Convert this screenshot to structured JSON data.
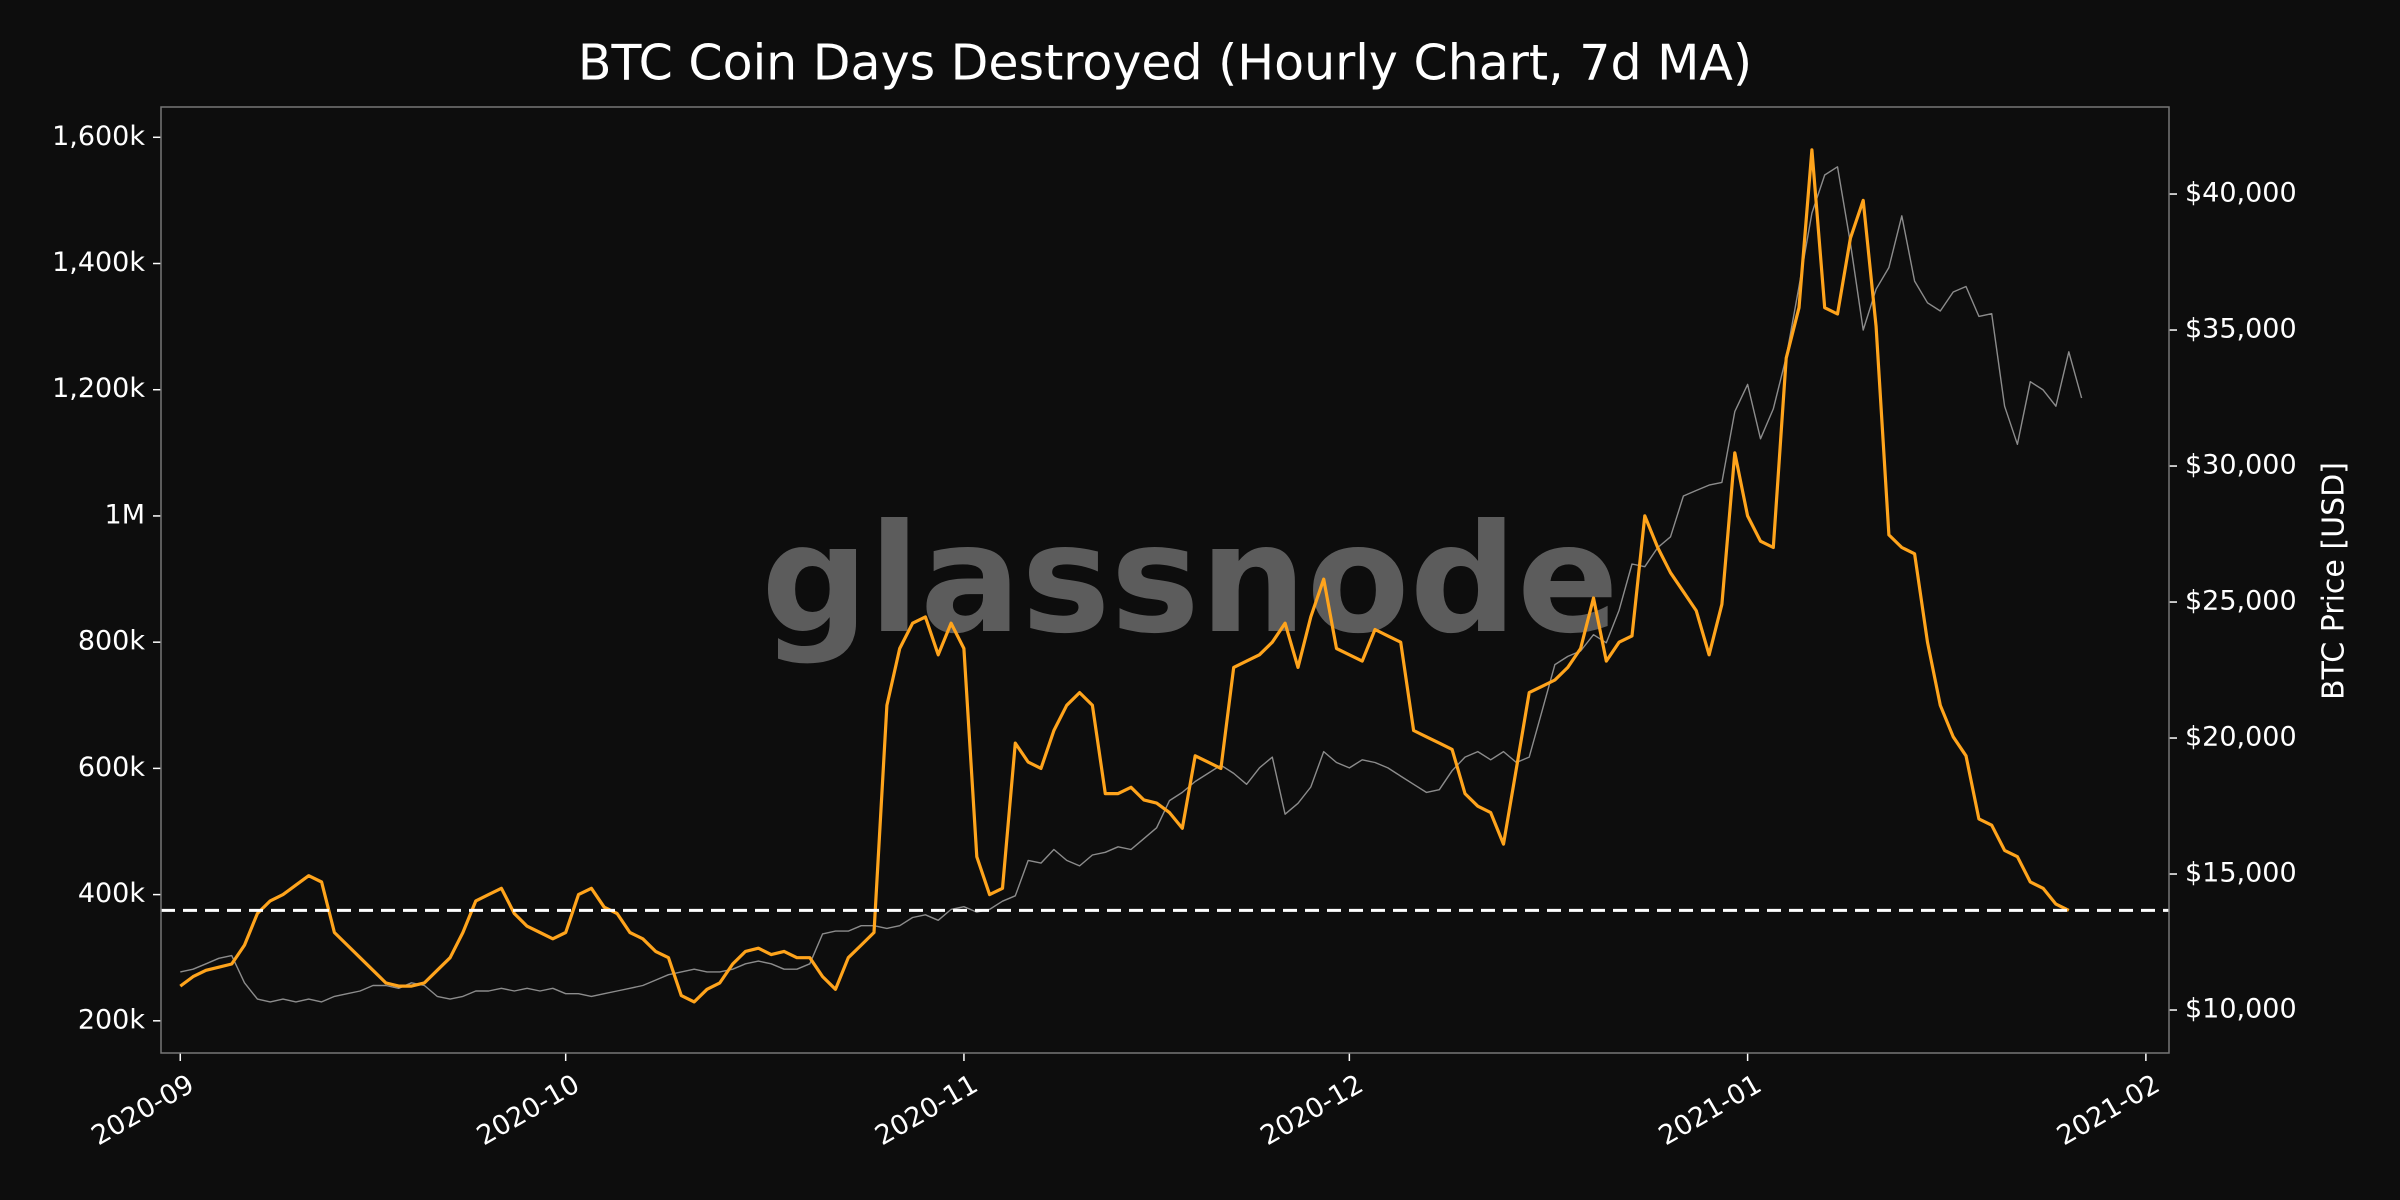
{
  "chart_data": {
    "type": "line",
    "title": "BTC Coin Days Destroyed (Hourly Chart, 7d MA)",
    "watermark": "glassnode",
    "y2label": "BTC Price [USD]",
    "categories": [
      "2020-09",
      null,
      null,
      null,
      null,
      null,
      null,
      null,
      null,
      null,
      null,
      null,
      null,
      null,
      null,
      null,
      null,
      null,
      null,
      null,
      null,
      null,
      null,
      null,
      null,
      null,
      null,
      null,
      null,
      null,
      "2020-10",
      null,
      null,
      null,
      null,
      null,
      null,
      null,
      null,
      null,
      null,
      null,
      null,
      null,
      null,
      null,
      null,
      null,
      null,
      null,
      null,
      null,
      null,
      null,
      null,
      null,
      null,
      null,
      null,
      null,
      null,
      "2020-11",
      null,
      null,
      null,
      null,
      null,
      null,
      null,
      null,
      null,
      null,
      null,
      null,
      null,
      null,
      null,
      null,
      null,
      null,
      null,
      null,
      null,
      null,
      null,
      null,
      null,
      null,
      null,
      null,
      null,
      "2020-12",
      null,
      null,
      null,
      null,
      null,
      null,
      null,
      null,
      null,
      null,
      null,
      null,
      null,
      null,
      null,
      null,
      null,
      null,
      null,
      null,
      null,
      null,
      null,
      null,
      null,
      null,
      null,
      null,
      null,
      null,
      "2021-01",
      null,
      null,
      null,
      null,
      null,
      null,
      null,
      null,
      null,
      null,
      null,
      null,
      null,
      null,
      null,
      null,
      null,
      null,
      null,
      null,
      null,
      null,
      null,
      null,
      null,
      null,
      null,
      null,
      null,
      null,
      "2021-02"
    ],
    "series": [
      {
        "color": "#8c8c8c",
        "axis": "y2",
        "values": [
          11400,
          11500,
          11700,
          11900,
          12000,
          11000,
          10400,
          10300,
          10400,
          10300,
          10400,
          10300,
          10500,
          10600,
          10700,
          10900,
          10900,
          10800,
          11000,
          10900,
          10500,
          10400,
          10500,
          10700,
          10700,
          10800,
          10700,
          10800,
          10700,
          10800,
          10600,
          10600,
          10500,
          10600,
          10700,
          10800,
          10900,
          11100,
          11300,
          11400,
          11500,
          11400,
          11400,
          11500,
          11700,
          11800,
          11700,
          11500,
          11500,
          11700,
          12800,
          12900,
          12900,
          13100,
          13100,
          13000,
          13100,
          13400,
          13500,
          13300,
          13700,
          13800,
          13600,
          13700,
          14000,
          14200,
          15500,
          15400,
          15900,
          15500,
          15300,
          15700,
          15800,
          16000,
          15900,
          16300,
          16700,
          17700,
          18000,
          18400,
          18700,
          19000,
          18700,
          18300,
          18900,
          19300,
          17200,
          17600,
          18200,
          19500,
          19100,
          18900,
          19200,
          19100,
          18900,
          18600,
          18300,
          18000,
          18100,
          18800,
          19300,
          19500,
          19200,
          19500,
          19100,
          19300,
          21000,
          22700,
          23000,
          23200,
          23800,
          23500,
          24700,
          26400,
          26300,
          27000,
          27400,
          28900,
          29100,
          29300,
          29400,
          32000,
          33000,
          31000,
          32100,
          34000,
          36600,
          39300,
          40700,
          41000,
          38200,
          35000,
          36500,
          37300,
          39200,
          36800,
          36000,
          35700,
          36400,
          36600,
          35500,
          35600,
          32200,
          30800,
          33100,
          32800,
          32200,
          34200,
          32500,
          null,
          null,
          null,
          null,
          null
        ]
      },
      {
        "color": "#ffa41c",
        "values": [
          255000,
          270000,
          280000,
          285000,
          290000,
          320000,
          370000,
          390000,
          400000,
          415000,
          430000,
          420000,
          340000,
          320000,
          300000,
          280000,
          260000,
          255000,
          255000,
          260000,
          280000,
          300000,
          340000,
          390000,
          400000,
          410000,
          370000,
          350000,
          340000,
          330000,
          340000,
          400000,
          410000,
          380000,
          370000,
          340000,
          330000,
          310000,
          300000,
          240000,
          230000,
          250000,
          260000,
          290000,
          310000,
          315000,
          305000,
          310000,
          300000,
          300000,
          270000,
          250000,
          300000,
          320000,
          340000,
          700000,
          790000,
          830000,
          840000,
          780000,
          830000,
          790000,
          460000,
          400000,
          410000,
          640000,
          610000,
          600000,
          660000,
          700000,
          720000,
          700000,
          560000,
          560000,
          570000,
          550000,
          545000,
          530000,
          505000,
          620000,
          610000,
          600000,
          760000,
          770000,
          780000,
          800000,
          830000,
          760000,
          840000,
          900000,
          790000,
          780000,
          770000,
          820000,
          810000,
          800000,
          660000,
          650000,
          640000,
          630000,
          560000,
          540000,
          530000,
          480000,
          600000,
          720000,
          730000,
          740000,
          760000,
          790000,
          870000,
          770000,
          800000,
          810000,
          1000000,
          950000,
          910000,
          880000,
          850000,
          780000,
          860000,
          1100000,
          1000000,
          960000,
          950000,
          1250000,
          1330000,
          1580000,
          1330000,
          1320000,
          1440000,
          1500000,
          1300000,
          970000,
          950000,
          940000,
          800000,
          700000,
          650000,
          620000,
          520000,
          510000,
          470000,
          460000,
          420000,
          410000,
          385000,
          375000,
          null,
          null,
          null,
          null,
          null,
          null
        ]
      }
    ],
    "hline": {
      "value": 375000,
      "color": "#ffffff",
      "style": "dashed"
    },
    "ylim": [
      149000,
      1648000
    ],
    "yticks": [
      {
        "value": 200000,
        "label": "200k"
      },
      {
        "value": 400000,
        "label": "400k"
      },
      {
        "value": 600000,
        "label": "600k"
      },
      {
        "value": 800000,
        "label": "800k"
      },
      {
        "value": 1000000,
        "label": "1M"
      },
      {
        "value": 1200000,
        "label": "1,200k"
      },
      {
        "value": 1400000,
        "label": "1,400k"
      },
      {
        "value": 1600000,
        "label": "1,600k"
      }
    ],
    "y2lim": [
      8420,
      43200
    ],
    "y2ticks": [
      {
        "value": 10000,
        "label": "$10,000"
      },
      {
        "value": 15000,
        "label": "$15,000"
      },
      {
        "value": 20000,
        "label": "$20,000"
      },
      {
        "value": 25000,
        "label": "$25,000"
      },
      {
        "value": 30000,
        "label": "$30,000"
      },
      {
        "value": 35000,
        "label": "$35,000"
      },
      {
        "value": 40000,
        "label": "$40,000"
      }
    ],
    "grid": false
  }
}
